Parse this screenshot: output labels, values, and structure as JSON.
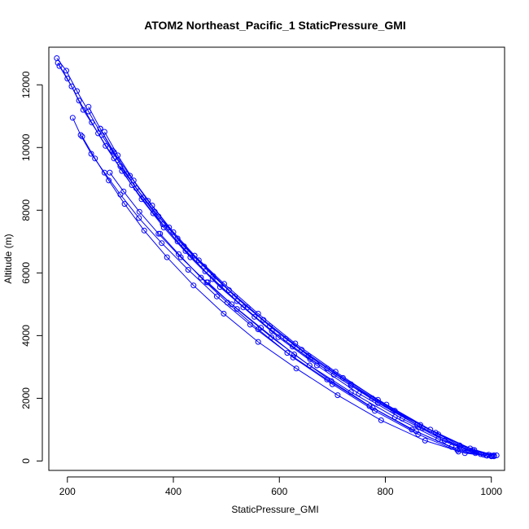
{
  "chart_data": {
    "type": "line",
    "title": "ATOM2 Northeast_Pacific_1 StaticPressure_GMI",
    "xlabel": "StaticPressure_GMI",
    "ylabel": "Altitude (m)",
    "xlim": [
      165,
      1025
    ],
    "ylim": [
      -300,
      13200
    ],
    "xticks": [
      200,
      400,
      600,
      800,
      1000
    ],
    "yticks": [
      0,
      2000,
      4000,
      6000,
      8000,
      10000,
      12000
    ],
    "grid": false,
    "legend": "none",
    "color": "#0000ff",
    "series": [
      {
        "x": [
          180,
          198,
          218,
          240,
          265,
          295,
          330,
          372,
          420,
          475,
          540,
          612,
          690,
          775,
          860,
          940,
          1000
        ],
        "y": [
          12850,
          12450,
          11800,
          11150,
          10400,
          9600,
          8700,
          7800,
          6850,
          5900,
          4900,
          3900,
          2950,
          2000,
          1150,
          450,
          170
        ]
      },
      {
        "x": [
          182,
          200,
          222,
          246,
          272,
          303,
          340,
          382,
          432,
          488,
          553,
          625,
          703,
          786,
          870,
          948,
          1005
        ],
        "y": [
          12700,
          12200,
          11500,
          10800,
          10050,
          9250,
          8350,
          7450,
          6500,
          5550,
          4600,
          3650,
          2750,
          1850,
          1050,
          400,
          150
        ]
      },
      {
        "x": [
          185,
          208,
          230,
          258,
          288,
          322,
          362,
          408,
          460,
          520,
          586,
          658,
          735,
          815,
          895,
          965,
          1010
        ],
        "y": [
          12600,
          11950,
          11200,
          10450,
          9650,
          8800,
          7900,
          7000,
          6050,
          5100,
          4150,
          3250,
          2400,
          1600,
          900,
          350,
          180
        ]
      },
      {
        "x": [
          210,
          225,
          245,
          270,
          300,
          335,
          378,
          428,
          482,
          545,
          615,
          690,
          770,
          850,
          925,
          985
        ],
        "y": [
          10950,
          10400,
          9800,
          9200,
          8500,
          7750,
          6950,
          6100,
          5250,
          4350,
          3450,
          2600,
          1750,
          1000,
          450,
          200
        ]
      },
      {
        "x": [
          228,
          252,
          278,
          308,
          345,
          388,
          438,
          495,
          560,
          632,
          710,
          792,
          875,
          950,
          1000
        ],
        "y": [
          10350,
          9650,
          8950,
          8200,
          7350,
          6500,
          5600,
          4700,
          3800,
          2950,
          2100,
          1300,
          650,
          250,
          150
        ]
      },
      {
        "x": [
          240,
          262,
          288,
          318,
          352,
          392,
          440,
          496,
          560,
          630,
          706,
          786,
          866,
          940,
          995
        ],
        "y": [
          11300,
          10600,
          9850,
          9100,
          8300,
          7450,
          6550,
          5650,
          4700,
          3750,
          2850,
          1950,
          1150,
          500,
          200
        ]
      },
      {
        "x": [
          262,
          285,
          312,
          343,
          380,
          423,
          474,
          532,
          598,
          671,
          750,
          832,
          912,
          980
        ],
        "y": [
          10600,
          9900,
          9150,
          8400,
          7550,
          6700,
          5800,
          4900,
          3950,
          3050,
          2150,
          1350,
          650,
          220
        ]
      },
      {
        "x": [
          270,
          295,
          325,
          360,
          400,
          448,
          505,
          570,
          642,
          720,
          802,
          885,
          960,
          1005
        ],
        "y": [
          10500,
          9750,
          8950,
          8150,
          7300,
          6400,
          5450,
          4500,
          3550,
          2650,
          1800,
          1000,
          400,
          180
        ]
      },
      {
        "x": [
          280,
          306,
          336,
          372,
          414,
          463,
          520,
          585,
          657,
          735,
          818,
          900,
          970
        ],
        "y": [
          9200,
          8600,
          7950,
          7250,
          6500,
          5700,
          4850,
          3950,
          3050,
          2200,
          1400,
          700,
          250
        ]
      },
      {
        "x": [
          300,
          330,
          365,
          408,
          458,
          516,
          582,
          655,
          735,
          818,
          900,
          968,
          1002
        ],
        "y": [
          9400,
          8700,
          7950,
          7100,
          6200,
          5250,
          4300,
          3350,
          2450,
          1600,
          850,
          350,
          160
        ]
      },
      {
        "x": [
          375,
          410,
          452,
          502,
          560,
          626,
          700,
          780,
          862,
          938,
          992
        ],
        "y": [
          7250,
          6600,
          5850,
          5050,
          4200,
          3300,
          2450,
          1600,
          850,
          300,
          170
        ]
      },
      {
        "x": [
          465,
          510,
          565,
          628,
          698,
          776,
          858,
          936,
          990
        ],
        "y": [
          5700,
          5000,
          4250,
          3400,
          2550,
          1700,
          950,
          350,
          180
        ]
      }
    ]
  }
}
